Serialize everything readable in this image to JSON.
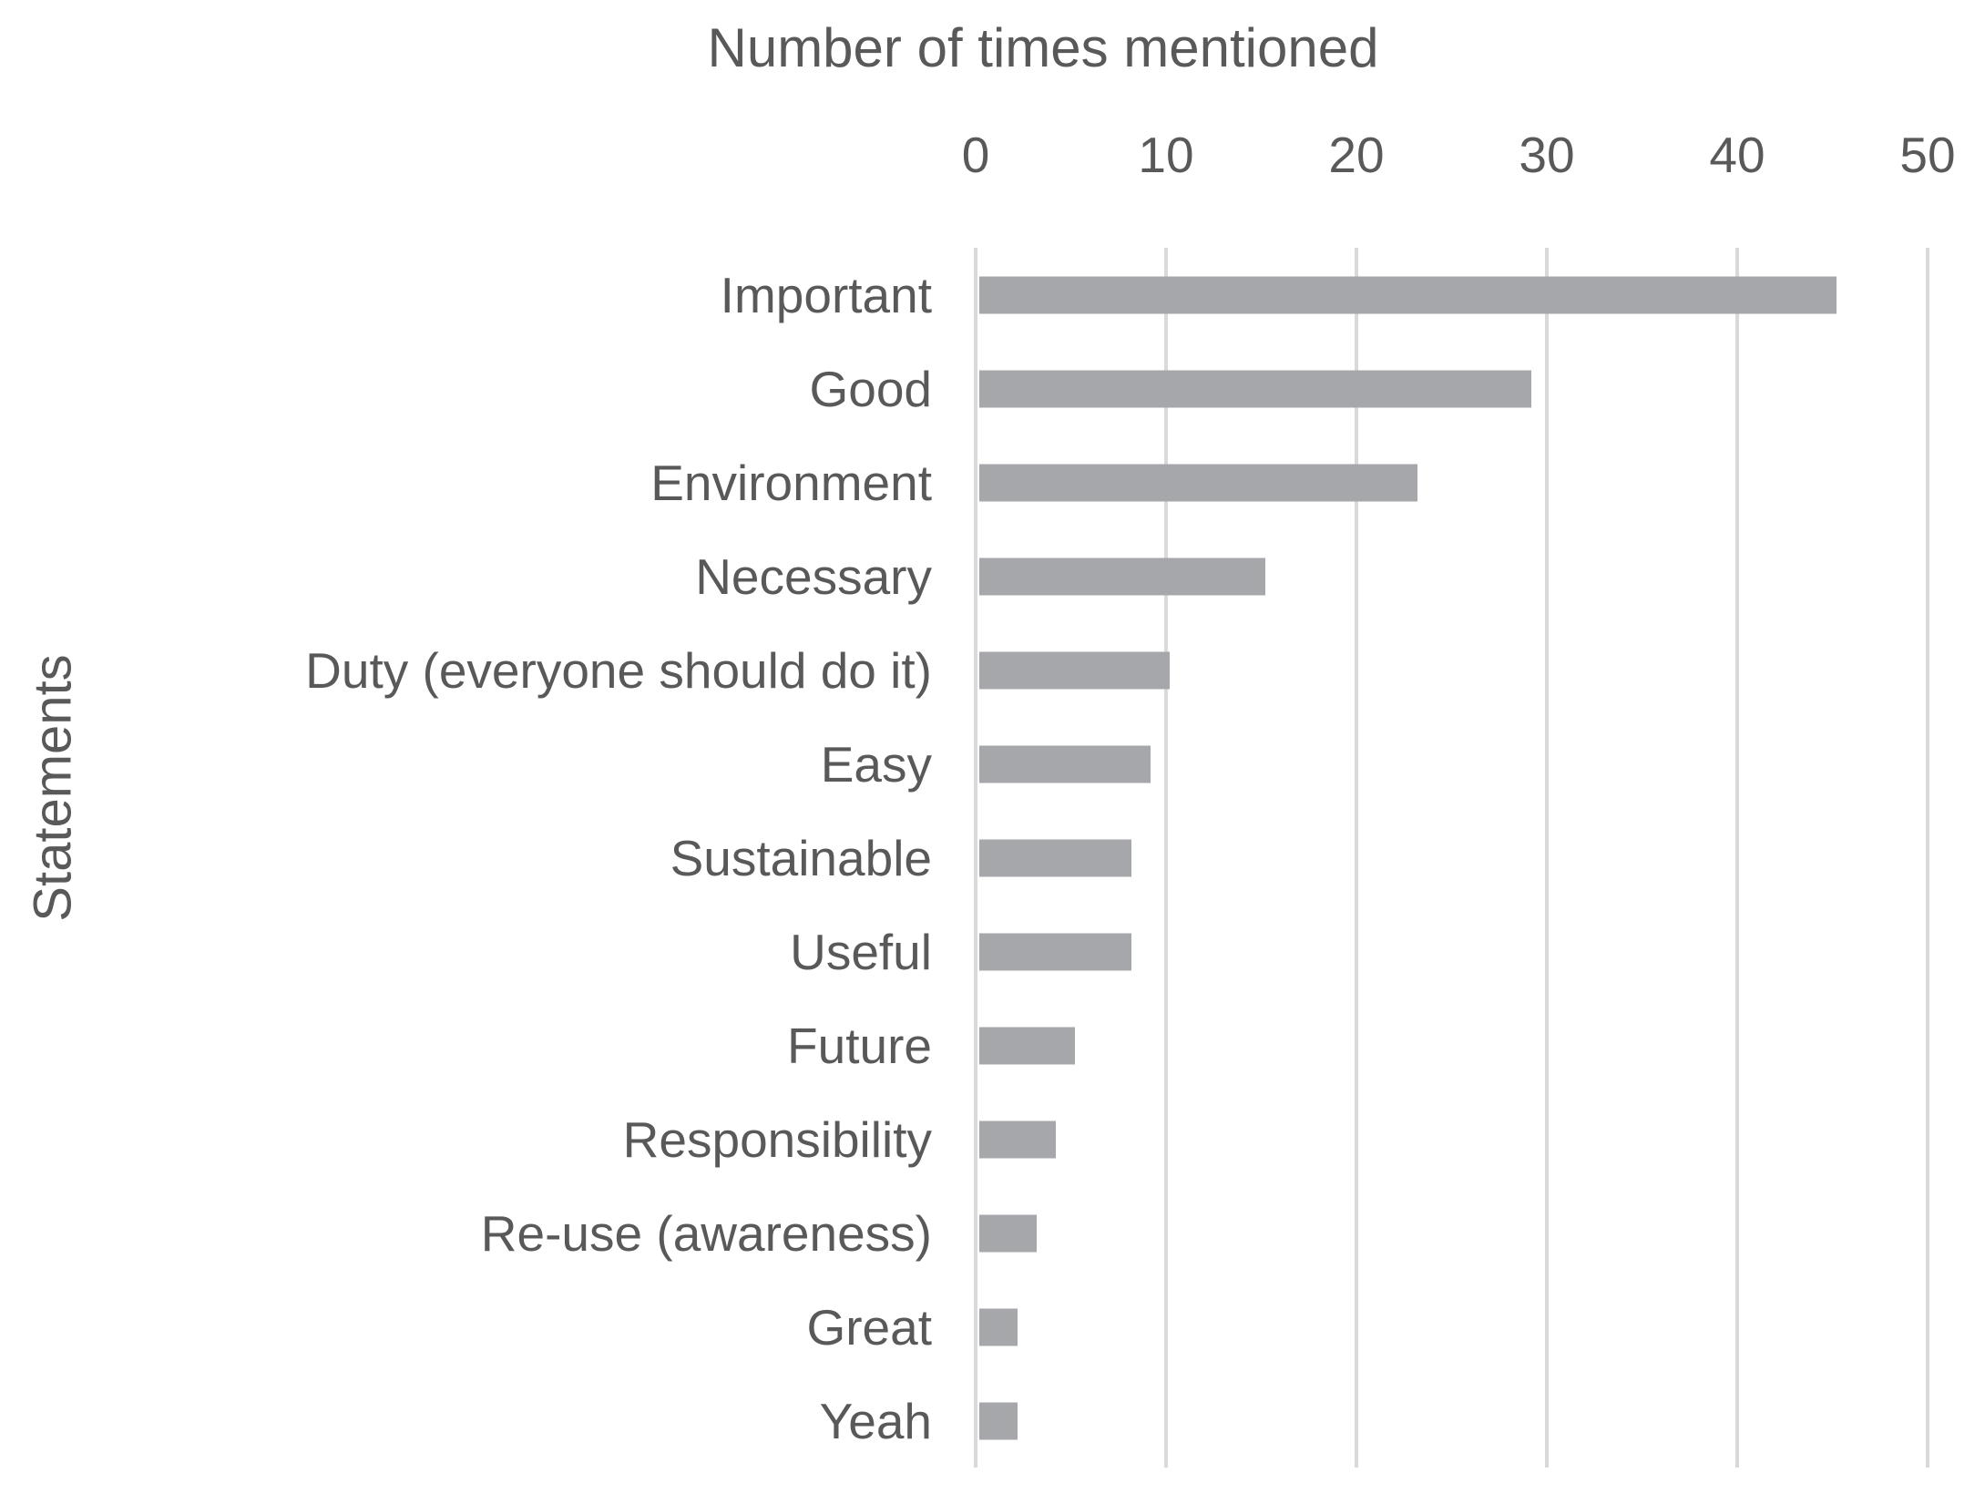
{
  "chart_data": {
    "type": "bar",
    "orientation": "horizontal",
    "title": "Number of times mentioned",
    "xlabel": "Number of times mentioned",
    "ylabel": "Statements",
    "categories": [
      "Important",
      "Good",
      "Environment",
      "Necessary",
      "Duty (everyone should do it)",
      "Easy",
      "Sustainable",
      "Useful",
      "Future",
      "Responsibility",
      "Re-use (awareness)",
      "Great",
      "Yeah"
    ],
    "values": [
      45,
      29,
      23,
      15,
      10,
      9,
      8,
      8,
      5,
      4,
      3,
      2,
      2
    ],
    "xlim": [
      0,
      50
    ],
    "xticks": [
      0,
      10,
      20,
      30,
      40,
      50
    ],
    "grid": true,
    "legend": false,
    "bar_color": "#a6a7ab",
    "gridline_color": "#d9d9d9",
    "text_color": "#595959",
    "background_color": "#ffffff"
  }
}
